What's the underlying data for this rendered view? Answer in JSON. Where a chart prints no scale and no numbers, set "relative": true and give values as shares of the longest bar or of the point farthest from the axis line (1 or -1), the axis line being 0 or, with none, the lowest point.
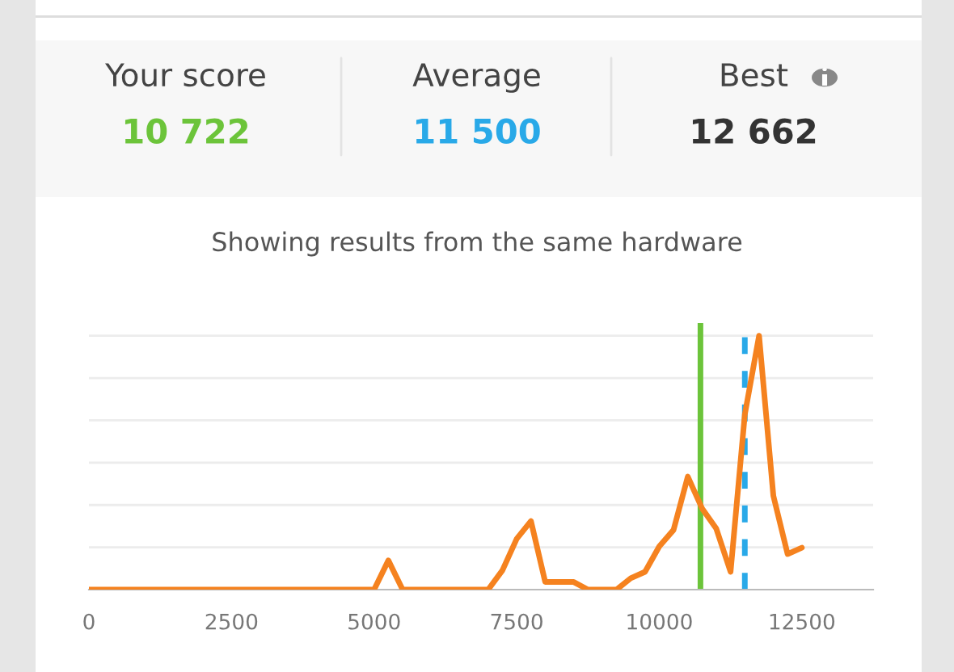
{
  "chart_data": {
    "type": "line",
    "title": "Showing results from the same hardware",
    "annotations": [
      "Your score",
      "10 722",
      "Average",
      "11 500",
      "Best",
      "12 662"
    ],
    "relative": true,
    "x": [
      0,
      5000,
      5250,
      5500,
      7000,
      7250,
      7500,
      7750,
      8000,
      8500,
      8750,
      9250,
      9500,
      9750,
      10000,
      10250,
      10500,
      10750,
      11000,
      11250,
      11500,
      11750,
      12000,
      12250,
      12500
    ],
    "series": [
      {
        "color": "#f5821f",
        "values": [
          0,
          0,
          0.115,
          0,
          0,
          0.076,
          0.2,
          0.27,
          0.03,
          0.03,
          0,
          0,
          0.045,
          0.07,
          0.17,
          0.235,
          0.445,
          0.32,
          0.24,
          0.07,
          0.69,
          1,
          0.37,
          0.14,
          0.165
        ]
      }
    ],
    "xlim": [
      0,
      13750
    ],
    "xticks": [
      0,
      2500,
      5000,
      7500,
      10000,
      12500
    ],
    "ref_lines": [
      {
        "axis": "x",
        "value": 10722,
        "color": "#6cc43a",
        "line_style": "solid"
      },
      {
        "axis": "x",
        "value": 11500,
        "color": "#29a9e8",
        "line_style": "dashed"
      }
    ],
    "grid": "y",
    "tick_labels": "x",
    "marker": "none",
    "line_style": "solid",
    "legend": false
  }
}
